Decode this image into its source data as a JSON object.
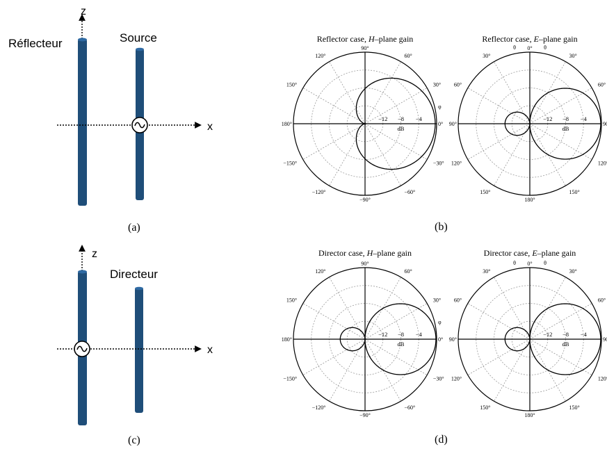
{
  "panels": {
    "a": {
      "label": "(a)",
      "axis_z": "z",
      "axis_x": "x",
      "element_label": "Réflecteur",
      "source_label": "Source"
    },
    "b": {
      "label": "(b)"
    },
    "c": {
      "label": "(c)",
      "axis_z": "z",
      "axis_x": "x",
      "element_label": "Directeur"
    },
    "d": {
      "label": "(d)"
    }
  },
  "colors": {
    "rod": "#1f4e79",
    "rod_top": "#2f6aa3",
    "line": "#000000",
    "grid": "#9a9a9a"
  },
  "chart_data": [
    {
      "type": "polar",
      "title_prefix": "Reflector case, ",
      "title_plane": "H",
      "title_suffix": "–plane gain",
      "angle_labels": [
        "90°",
        "60°",
        "30°",
        "0°",
        "−30°",
        "−60°",
        "−90°",
        "−120°",
        "−150°",
        "180°",
        "150°",
        "120°"
      ],
      "angle_values": [
        90,
        60,
        30,
        0,
        -30,
        -60,
        -90,
        -120,
        -150,
        180,
        150,
        120
      ],
      "angle_symbol": "φ",
      "radial_ticks": [
        "−12",
        "−8",
        "−4"
      ],
      "radial_unit": "dB",
      "rlim_db": [
        -16,
        0
      ],
      "main_lobe_direction_deg": 0,
      "back_lobe": false
    },
    {
      "type": "polar",
      "title_prefix": "Reflector case, ",
      "title_plane": "E",
      "title_suffix": "–plane gain",
      "angle_labels": [
        "0°",
        "30°",
        "60°",
        "90°",
        "120°",
        "150°",
        "180°",
        "150°",
        "120°",
        "90°",
        "60°",
        "30°"
      ],
      "angle_values": [
        0,
        30,
        60,
        90,
        120,
        150,
        180,
        150,
        120,
        90,
        60,
        30
      ],
      "angle_symbol": "θ",
      "radial_ticks": [
        "−12",
        "−8",
        "−4"
      ],
      "radial_unit": "dB",
      "rlim_db": [
        -16,
        0
      ],
      "main_lobe_direction_deg": 90,
      "back_lobe": true
    },
    {
      "type": "polar",
      "title_prefix": "Director case, ",
      "title_plane": "H",
      "title_suffix": "–plane gain",
      "angle_labels": [
        "90°",
        "60°",
        "30°",
        "0°",
        "−30°",
        "−60°",
        "−90°",
        "−120°",
        "−150°",
        "180°",
        "150°",
        "120°"
      ],
      "angle_values": [
        90,
        60,
        30,
        0,
        -30,
        -60,
        -90,
        -120,
        -150,
        180,
        150,
        120
      ],
      "angle_symbol": "φ",
      "radial_ticks": [
        "−12",
        "−8",
        "−4"
      ],
      "radial_unit": "dB",
      "rlim_db": [
        -16,
        0
      ],
      "main_lobe_direction_deg": 0,
      "back_lobe": true
    },
    {
      "type": "polar",
      "title_prefix": "Director case, ",
      "title_plane": "E",
      "title_suffix": "–plane gain",
      "angle_labels": [
        "0°",
        "30°",
        "60°",
        "90°",
        "120°",
        "150°",
        "180°",
        "150°",
        "120°",
        "90°",
        "60°",
        "30°"
      ],
      "angle_values": [
        0,
        30,
        60,
        90,
        120,
        150,
        180,
        150,
        120,
        90,
        60,
        30
      ],
      "angle_symbol": "θ",
      "radial_ticks": [
        "−12",
        "−8",
        "−4"
      ],
      "radial_unit": "dB",
      "rlim_db": [
        -16,
        0
      ],
      "main_lobe_direction_deg": 90,
      "back_lobe": true
    }
  ]
}
